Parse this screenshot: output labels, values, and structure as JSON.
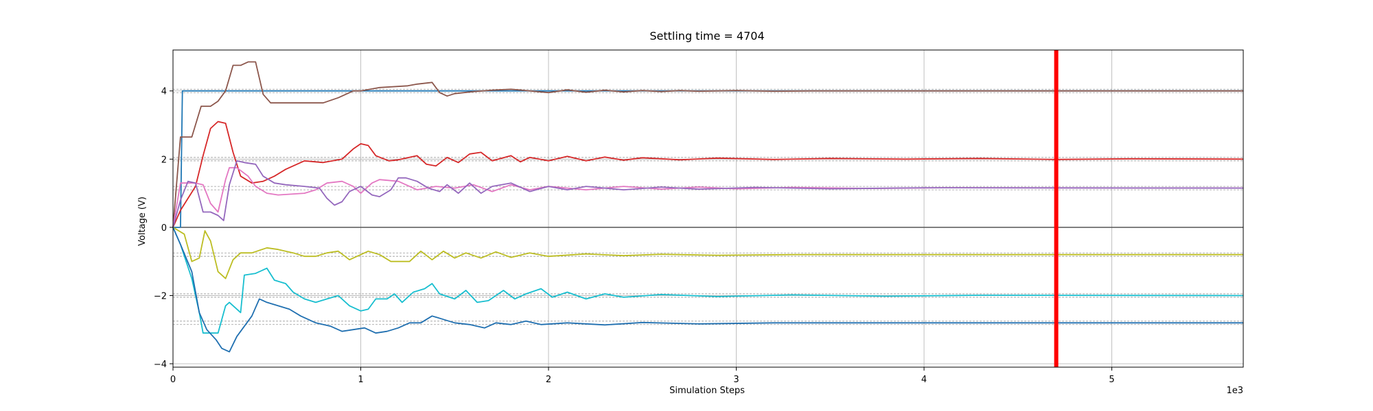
{
  "chart_data": {
    "type": "line",
    "title": "Settling time = 4704",
    "xlabel": "Simulation Steps",
    "ylabel": "Voltage (V)",
    "x_scale_label": "1e3",
    "xlim": [
      0,
      5700
    ],
    "ylim": [
      -4.1,
      5.2
    ],
    "x_ticks": [
      0,
      1000,
      2000,
      3000,
      4000,
      5000
    ],
    "x_tick_labels": [
      "0",
      "1",
      "2",
      "3",
      "4",
      "5"
    ],
    "y_ticks": [
      -4,
      -2,
      0,
      2,
      4
    ],
    "y_tick_labels": [
      "−4",
      "−2",
      "0",
      "2",
      "4"
    ],
    "grid": true,
    "zero_line": 0,
    "settling_time": 4704,
    "colors": {
      "settling_marker": "#ff0000",
      "zero_line": "#555555",
      "band": "#999999"
    },
    "series": [
      {
        "color": "#1f77b4",
        "target": 4.0,
        "points": [
          [
            0,
            0
          ],
          [
            40,
            0
          ],
          [
            50,
            4.0
          ],
          [
            5700,
            4.0
          ]
        ]
      },
      {
        "color": "#8c564b",
        "target": 4.0,
        "points": [
          [
            0,
            0
          ],
          [
            40,
            2.65
          ],
          [
            100,
            2.65
          ],
          [
            150,
            3.55
          ],
          [
            200,
            3.55
          ],
          [
            240,
            3.7
          ],
          [
            280,
            4.0
          ],
          [
            320,
            4.75
          ],
          [
            360,
            4.75
          ],
          [
            400,
            4.85
          ],
          [
            440,
            4.85
          ],
          [
            480,
            3.9
          ],
          [
            520,
            3.65
          ],
          [
            800,
            3.65
          ],
          [
            880,
            3.8
          ],
          [
            960,
            4.0
          ],
          [
            1000,
            4.0
          ],
          [
            1100,
            4.1
          ],
          [
            1250,
            4.15
          ],
          [
            1300,
            4.2
          ],
          [
            1380,
            4.25
          ],
          [
            1420,
            3.95
          ],
          [
            1460,
            3.85
          ],
          [
            1500,
            3.92
          ],
          [
            1600,
            3.98
          ],
          [
            1700,
            4.02
          ],
          [
            1800,
            4.05
          ],
          [
            1900,
            4.0
          ],
          [
            2000,
            3.95
          ],
          [
            2100,
            4.03
          ],
          [
            2200,
            3.96
          ],
          [
            2300,
            4.02
          ],
          [
            2400,
            3.97
          ],
          [
            2500,
            4.01
          ],
          [
            2600,
            3.98
          ],
          [
            2700,
            4.01
          ],
          [
            2800,
            3.99
          ],
          [
            3000,
            4.01
          ],
          [
            3200,
            3.99
          ],
          [
            3400,
            4.0
          ],
          [
            5700,
            4.0
          ]
        ]
      },
      {
        "color": "#d62728",
        "target": 2.0,
        "points": [
          [
            0,
            0
          ],
          [
            40,
            0.5
          ],
          [
            120,
            1.2
          ],
          [
            160,
            2.1
          ],
          [
            200,
            2.9
          ],
          [
            240,
            3.1
          ],
          [
            280,
            3.05
          ],
          [
            320,
            2.2
          ],
          [
            360,
            1.5
          ],
          [
            420,
            1.3
          ],
          [
            480,
            1.35
          ],
          [
            540,
            1.5
          ],
          [
            600,
            1.7
          ],
          [
            700,
            1.95
          ],
          [
            800,
            1.9
          ],
          [
            900,
            2.0
          ],
          [
            960,
            2.3
          ],
          [
            1000,
            2.45
          ],
          [
            1040,
            2.4
          ],
          [
            1080,
            2.1
          ],
          [
            1150,
            1.95
          ],
          [
            1200,
            1.98
          ],
          [
            1300,
            2.1
          ],
          [
            1350,
            1.85
          ],
          [
            1400,
            1.8
          ],
          [
            1460,
            2.05
          ],
          [
            1520,
            1.9
          ],
          [
            1580,
            2.15
          ],
          [
            1640,
            2.2
          ],
          [
            1700,
            1.95
          ],
          [
            1800,
            2.1
          ],
          [
            1850,
            1.92
          ],
          [
            1900,
            2.05
          ],
          [
            2000,
            1.95
          ],
          [
            2100,
            2.08
          ],
          [
            2200,
            1.95
          ],
          [
            2300,
            2.06
          ],
          [
            2400,
            1.97
          ],
          [
            2500,
            2.04
          ],
          [
            2700,
            1.98
          ],
          [
            2900,
            2.03
          ],
          [
            3200,
            1.99
          ],
          [
            3500,
            2.02
          ],
          [
            3900,
            2.0
          ],
          [
            4300,
            2.02
          ],
          [
            4700,
            1.99
          ],
          [
            5100,
            2.01
          ],
          [
            5700,
            2.0
          ]
        ]
      },
      {
        "color": "#e377c2",
        "target": 1.15,
        "points": [
          [
            0,
            0
          ],
          [
            40,
            1.3
          ],
          [
            120,
            1.3
          ],
          [
            160,
            1.25
          ],
          [
            200,
            0.7
          ],
          [
            240,
            0.45
          ],
          [
            280,
            1.4
          ],
          [
            300,
            1.75
          ],
          [
            340,
            1.75
          ],
          [
            400,
            1.5
          ],
          [
            440,
            1.2
          ],
          [
            500,
            1.0
          ],
          [
            560,
            0.95
          ],
          [
            700,
            1.0
          ],
          [
            760,
            1.1
          ],
          [
            820,
            1.3
          ],
          [
            900,
            1.35
          ],
          [
            960,
            1.2
          ],
          [
            1000,
            1.0
          ],
          [
            1060,
            1.3
          ],
          [
            1100,
            1.4
          ],
          [
            1200,
            1.35
          ],
          [
            1300,
            1.1
          ],
          [
            1400,
            1.2
          ],
          [
            1500,
            1.15
          ],
          [
            1600,
            1.25
          ],
          [
            1700,
            1.05
          ],
          [
            1800,
            1.25
          ],
          [
            1900,
            1.1
          ],
          [
            2000,
            1.2
          ],
          [
            2200,
            1.1
          ],
          [
            2400,
            1.2
          ],
          [
            2600,
            1.12
          ],
          [
            2800,
            1.18
          ],
          [
            3000,
            1.13
          ],
          [
            3300,
            1.17
          ],
          [
            3700,
            1.14
          ],
          [
            4100,
            1.16
          ],
          [
            5700,
            1.15
          ]
        ]
      },
      {
        "color": "#9467bd",
        "target": 1.15,
        "points": [
          [
            0,
            0
          ],
          [
            40,
            0.8
          ],
          [
            80,
            1.35
          ],
          [
            120,
            1.3
          ],
          [
            160,
            0.45
          ],
          [
            200,
            0.45
          ],
          [
            240,
            0.35
          ],
          [
            270,
            0.2
          ],
          [
            300,
            1.25
          ],
          [
            340,
            1.95
          ],
          [
            380,
            1.9
          ],
          [
            440,
            1.85
          ],
          [
            480,
            1.5
          ],
          [
            540,
            1.3
          ],
          [
            600,
            1.25
          ],
          [
            700,
            1.2
          ],
          [
            780,
            1.15
          ],
          [
            820,
            0.85
          ],
          [
            860,
            0.65
          ],
          [
            900,
            0.75
          ],
          [
            940,
            1.05
          ],
          [
            1000,
            1.2
          ],
          [
            1060,
            0.95
          ],
          [
            1100,
            0.9
          ],
          [
            1160,
            1.1
          ],
          [
            1200,
            1.45
          ],
          [
            1240,
            1.45
          ],
          [
            1300,
            1.35
          ],
          [
            1360,
            1.15
          ],
          [
            1420,
            1.05
          ],
          [
            1460,
            1.25
          ],
          [
            1520,
            1.0
          ],
          [
            1580,
            1.3
          ],
          [
            1640,
            1.0
          ],
          [
            1700,
            1.2
          ],
          [
            1800,
            1.3
          ],
          [
            1900,
            1.05
          ],
          [
            2000,
            1.2
          ],
          [
            2100,
            1.1
          ],
          [
            2200,
            1.2
          ],
          [
            2400,
            1.1
          ],
          [
            2600,
            1.18
          ],
          [
            2800,
            1.12
          ],
          [
            3100,
            1.17
          ],
          [
            3500,
            1.13
          ],
          [
            4000,
            1.16
          ],
          [
            5700,
            1.15
          ]
        ]
      },
      {
        "color": "#bcbd22",
        "target": -0.8,
        "points": [
          [
            0,
            0
          ],
          [
            60,
            -0.2
          ],
          [
            100,
            -1.0
          ],
          [
            140,
            -0.9
          ],
          [
            170,
            -0.1
          ],
          [
            200,
            -0.4
          ],
          [
            240,
            -1.3
          ],
          [
            280,
            -1.5
          ],
          [
            320,
            -0.95
          ],
          [
            360,
            -0.75
          ],
          [
            420,
            -0.75
          ],
          [
            500,
            -0.6
          ],
          [
            560,
            -0.65
          ],
          [
            640,
            -0.75
          ],
          [
            700,
            -0.85
          ],
          [
            760,
            -0.85
          ],
          [
            820,
            -0.75
          ],
          [
            880,
            -0.7
          ],
          [
            940,
            -0.95
          ],
          [
            1000,
            -0.8
          ],
          [
            1040,
            -0.7
          ],
          [
            1100,
            -0.8
          ],
          [
            1160,
            -1.0
          ],
          [
            1260,
            -1.0
          ],
          [
            1320,
            -0.7
          ],
          [
            1380,
            -0.95
          ],
          [
            1440,
            -0.7
          ],
          [
            1500,
            -0.9
          ],
          [
            1560,
            -0.75
          ],
          [
            1640,
            -0.9
          ],
          [
            1720,
            -0.72
          ],
          [
            1800,
            -0.88
          ],
          [
            1900,
            -0.75
          ],
          [
            2000,
            -0.85
          ],
          [
            2200,
            -0.78
          ],
          [
            2400,
            -0.83
          ],
          [
            2600,
            -0.79
          ],
          [
            2900,
            -0.82
          ],
          [
            3300,
            -0.8
          ],
          [
            5700,
            -0.8
          ]
        ]
      },
      {
        "color": "#17becf",
        "target": -2.0,
        "points": [
          [
            0,
            0
          ],
          [
            40,
            -0.5
          ],
          [
            100,
            -1.5
          ],
          [
            140,
            -2.5
          ],
          [
            160,
            -3.1
          ],
          [
            240,
            -3.1
          ],
          [
            280,
            -2.3
          ],
          [
            300,
            -2.2
          ],
          [
            360,
            -2.5
          ],
          [
            380,
            -1.4
          ],
          [
            440,
            -1.35
          ],
          [
            500,
            -1.2
          ],
          [
            540,
            -1.55
          ],
          [
            600,
            -1.65
          ],
          [
            640,
            -1.9
          ],
          [
            700,
            -2.1
          ],
          [
            760,
            -2.2
          ],
          [
            820,
            -2.1
          ],
          [
            880,
            -2.0
          ],
          [
            940,
            -2.3
          ],
          [
            1000,
            -2.45
          ],
          [
            1040,
            -2.4
          ],
          [
            1080,
            -2.1
          ],
          [
            1140,
            -2.1
          ],
          [
            1180,
            -1.95
          ],
          [
            1220,
            -2.2
          ],
          [
            1280,
            -1.9
          ],
          [
            1340,
            -1.8
          ],
          [
            1380,
            -1.65
          ],
          [
            1420,
            -1.95
          ],
          [
            1500,
            -2.1
          ],
          [
            1560,
            -1.85
          ],
          [
            1620,
            -2.2
          ],
          [
            1680,
            -2.15
          ],
          [
            1760,
            -1.85
          ],
          [
            1820,
            -2.1
          ],
          [
            1880,
            -1.95
          ],
          [
            1960,
            -1.8
          ],
          [
            2020,
            -2.05
          ],
          [
            2100,
            -1.9
          ],
          [
            2200,
            -2.1
          ],
          [
            2300,
            -1.95
          ],
          [
            2400,
            -2.05
          ],
          [
            2600,
            -1.97
          ],
          [
            2900,
            -2.03
          ],
          [
            3300,
            -1.98
          ],
          [
            3800,
            -2.02
          ],
          [
            4300,
            -1.99
          ],
          [
            5700,
            -2.0
          ]
        ]
      },
      {
        "color": "#1f6fb0",
        "target": -2.8,
        "points": [
          [
            0,
            0
          ],
          [
            40,
            -0.5
          ],
          [
            100,
            -1.3
          ],
          [
            140,
            -2.5
          ],
          [
            180,
            -3.0
          ],
          [
            230,
            -3.3
          ],
          [
            260,
            -3.55
          ],
          [
            300,
            -3.65
          ],
          [
            340,
            -3.2
          ],
          [
            380,
            -2.9
          ],
          [
            420,
            -2.6
          ],
          [
            460,
            -2.1
          ],
          [
            500,
            -2.2
          ],
          [
            560,
            -2.3
          ],
          [
            620,
            -2.4
          ],
          [
            680,
            -2.6
          ],
          [
            760,
            -2.8
          ],
          [
            840,
            -2.9
          ],
          [
            900,
            -3.05
          ],
          [
            960,
            -3.0
          ],
          [
            1020,
            -2.95
          ],
          [
            1080,
            -3.1
          ],
          [
            1140,
            -3.05
          ],
          [
            1200,
            -2.95
          ],
          [
            1260,
            -2.8
          ],
          [
            1320,
            -2.8
          ],
          [
            1380,
            -2.6
          ],
          [
            1440,
            -2.7
          ],
          [
            1500,
            -2.8
          ],
          [
            1580,
            -2.85
          ],
          [
            1660,
            -2.95
          ],
          [
            1720,
            -2.8
          ],
          [
            1800,
            -2.85
          ],
          [
            1880,
            -2.75
          ],
          [
            1960,
            -2.85
          ],
          [
            2100,
            -2.8
          ],
          [
            2300,
            -2.86
          ],
          [
            2500,
            -2.79
          ],
          [
            2800,
            -2.83
          ],
          [
            3200,
            -2.8
          ],
          [
            5700,
            -2.8
          ]
        ]
      }
    ]
  }
}
